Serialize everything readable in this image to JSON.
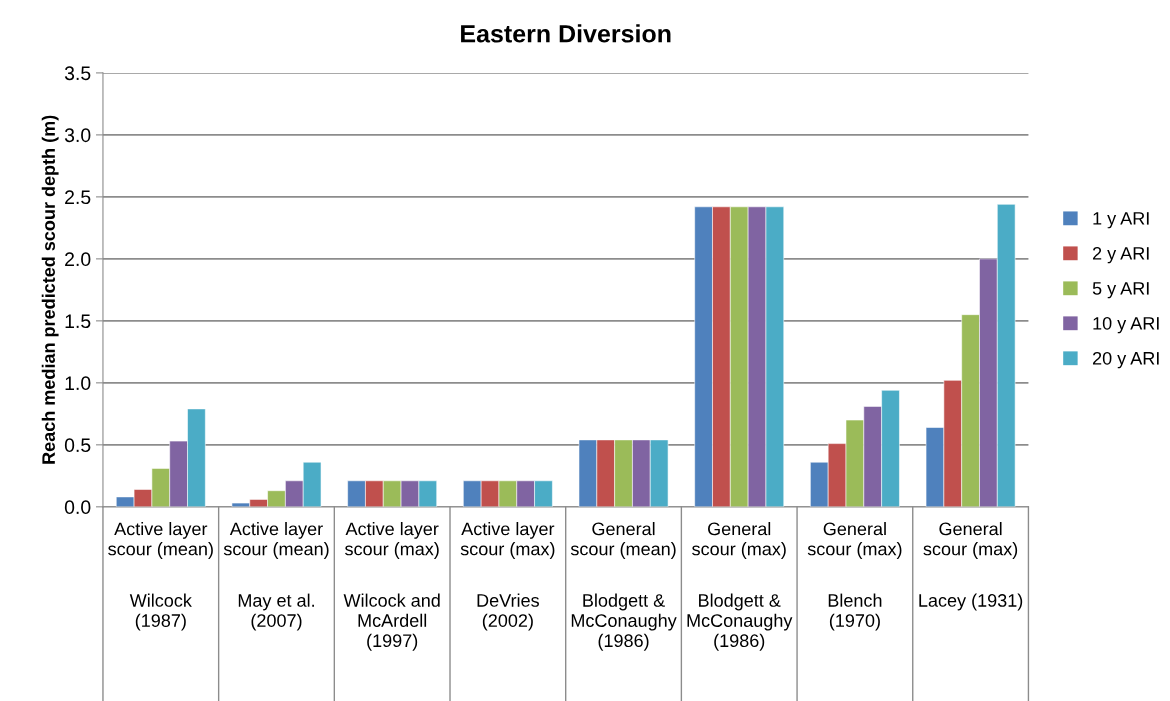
{
  "chart_data": {
    "type": "bar",
    "title": "Eastern Diversion",
    "ylabel": "Reach median predicted scour depth (m)",
    "categories": [
      "Active layer\nscour (mean)\n\nWilcock\n(1987)",
      "Active layer\nscour (mean)\n\nMay et al.\n(2007)",
      "Active layer\nscour (max)\n\nWilcock and\nMcArdell\n(1997)",
      "Active layer\nscour (max)\n\nDeVries\n(2002)",
      "General\nscour (mean)\n\nBlodgett &\nMcConaughy\n(1986)",
      "General\nscour (max)\n\nBlodgett &\nMcConaughy\n(1986)",
      "General\nscour (max)\n\nBlench\n(1970)",
      "General\nscour (max)\n\nLacey (1931)"
    ],
    "series": [
      {
        "name": "1 y ARI",
        "color": "#4f81bd",
        "values": [
          0.08,
          0.03,
          0.21,
          0.21,
          0.54,
          2.42,
          0.36,
          0.64
        ]
      },
      {
        "name": "2 y ARI",
        "color": "#c0504d",
        "values": [
          0.14,
          0.06,
          0.21,
          0.21,
          0.54,
          2.42,
          0.51,
          1.02
        ]
      },
      {
        "name": "5 y ARI",
        "color": "#9bbb59",
        "values": [
          0.31,
          0.13,
          0.21,
          0.21,
          0.54,
          2.42,
          0.7,
          1.55
        ]
      },
      {
        "name": "10 y ARI",
        "color": "#8064a2",
        "values": [
          0.53,
          0.21,
          0.21,
          0.21,
          0.54,
          2.42,
          0.81,
          2.0
        ]
      },
      {
        "name": "20 y ARI",
        "color": "#4bacc6",
        "values": [
          0.79,
          0.36,
          0.21,
          0.21,
          0.54,
          2.42,
          0.94,
          2.44
        ]
      }
    ],
    "ylim": [
      0,
      3.5
    ],
    "yticks": [
      {
        "value": 0,
        "label": "0.0"
      },
      {
        "value": 0.5,
        "label": "0.5"
      },
      {
        "value": 1,
        "label": "1.0"
      },
      {
        "value": 1.5,
        "label": "1.5"
      },
      {
        "value": 2,
        "label": "2.0"
      },
      {
        "value": 2.5,
        "label": "2.5"
      },
      {
        "value": 3,
        "label": "3.0"
      },
      {
        "value": 3.5,
        "label": "3.5"
      }
    ],
    "grid": "y",
    "legend": "right"
  }
}
